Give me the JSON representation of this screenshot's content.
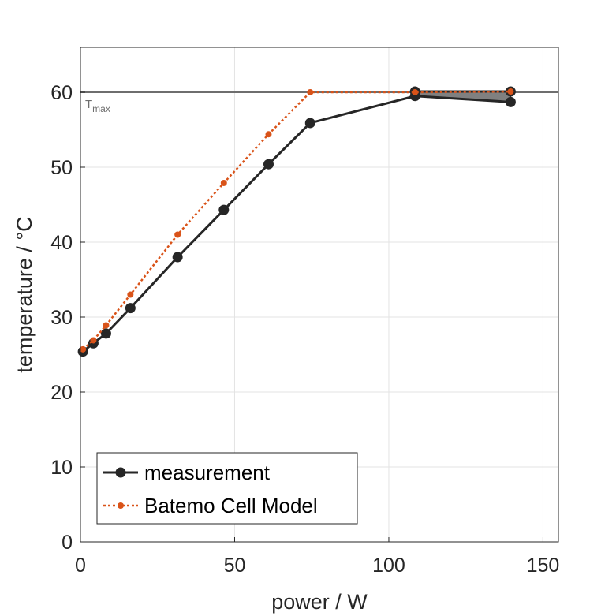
{
  "chart_data": {
    "type": "line",
    "title": "",
    "xlabel": "power / W",
    "ylabel": "temperature / °C",
    "xlim": [
      0,
      155
    ],
    "ylim": [
      0,
      66
    ],
    "xticks": [
      0,
      50,
      100,
      150
    ],
    "yticks": [
      0,
      10,
      20,
      30,
      40,
      50,
      60
    ],
    "xtick_labels": [
      "0",
      "50",
      "100",
      "150"
    ],
    "ytick_labels": [
      "0",
      "10",
      "20",
      "30",
      "40",
      "50",
      "60"
    ],
    "grid": true,
    "reference_line": {
      "y": 60,
      "label": "T",
      "label_sub": "max",
      "color": "#6e6e6e"
    },
    "series": [
      {
        "name": "measurement",
        "color": "#262626",
        "style": "solid",
        "x": [
          0.8,
          4.2,
          8.3,
          16.2,
          31.5,
          46.5,
          61.0,
          74.5,
          108.5,
          139.5
        ],
        "y": [
          25.4,
          26.5,
          27.8,
          31.2,
          38.0,
          44.3,
          50.4,
          55.9,
          59.5,
          58.7
        ]
      },
      {
        "name": "measurement",
        "color": "#262626",
        "style": "solid",
        "label_in_legend": false,
        "x": [
          108.5,
          139.5
        ],
        "y": [
          60.1,
          60.1
        ]
      },
      {
        "name": "Batemo Cell Model",
        "color": "#d95319",
        "style": "dotted",
        "x": [
          0.8,
          4.2,
          8.3,
          16.2,
          31.5,
          46.5,
          61.0,
          74.5,
          108.5,
          139.5
        ],
        "y": [
          25.7,
          26.9,
          28.9,
          33.0,
          41.0,
          47.9,
          54.4,
          60.0,
          60.0,
          60.1
        ]
      }
    ],
    "shaded_region": {
      "color": "#808080",
      "x": [
        108.5,
        139.5
      ],
      "y_upper": [
        60.1,
        60.1
      ],
      "y_lower": [
        59.5,
        58.7
      ]
    },
    "legend": {
      "position": "bottom-left",
      "entries": [
        "measurement",
        "Batemo Cell Model"
      ]
    }
  }
}
